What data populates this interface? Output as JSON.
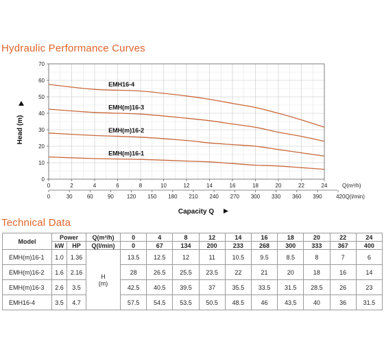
{
  "chart_title": "Hydraulic Performance Curves",
  "table_title": "Technical Data",
  "chart_data": {
    "type": "line",
    "ylabel": "Head (m)",
    "xlabel": "Capacity Q",
    "x_unit": "Q(m³/h)",
    "x2_unit": "420Q(l/min)",
    "ylim": [
      0,
      70
    ],
    "xlim": [
      0,
      24
    ],
    "y_ticks": [
      "0",
      "10",
      "20",
      "30",
      "40",
      "50",
      "60",
      "70"
    ],
    "x_ticks": [
      "0",
      "2",
      "4",
      "6",
      "8",
      "10",
      "12",
      "14",
      "16",
      "18",
      "20",
      "22",
      "24"
    ],
    "x2_ticks": [
      "0",
      "30",
      "60",
      "90",
      "120",
      "150",
      "180",
      "210",
      "240",
      "270",
      "300",
      "330",
      "360",
      "390"
    ],
    "grid": true,
    "line_color": "#c9683a",
    "series": [
      {
        "name": "EMH16-4",
        "x": [
          0,
          4,
          8,
          12,
          14,
          16,
          18,
          20,
          22,
          24
        ],
        "values": [
          57.5,
          54.5,
          53.5,
          50.5,
          48.5,
          46,
          43.5,
          40,
          36,
          31.5
        ]
      },
      {
        "name": "EMH(m)16-3",
        "x": [
          0,
          4,
          8,
          12,
          14,
          16,
          18,
          20,
          22,
          24
        ],
        "values": [
          42.5,
          40.5,
          39.5,
          37,
          35.5,
          33.5,
          31.5,
          28.5,
          26,
          23
        ]
      },
      {
        "name": "EMH(m)16-2",
        "x": [
          0,
          4,
          8,
          12,
          14,
          16,
          18,
          20,
          22,
          24
        ],
        "values": [
          28,
          26.5,
          25.5,
          23.5,
          22,
          21,
          20,
          18,
          16,
          14
        ]
      },
      {
        "name": "EMH(m)16-1",
        "x": [
          0,
          4,
          8,
          12,
          14,
          16,
          18,
          20,
          22,
          24
        ],
        "values": [
          13.5,
          12.5,
          12,
          11,
          10.5,
          9.5,
          8.5,
          8,
          7,
          6
        ]
      }
    ]
  },
  "table": {
    "h_model": "Model",
    "h_power": "Power",
    "h_kw": "kW",
    "h_hp": "HP",
    "h_q_m3h": "Q(m³/h)",
    "h_q_lmin": "Q(l/min)",
    "h_label": "H",
    "h_unit": "(m)",
    "q_m3h": [
      "0",
      "4",
      "8",
      "12",
      "14",
      "16",
      "18",
      "20",
      "22",
      "24"
    ],
    "q_lmin": [
      "0",
      "67",
      "134",
      "200",
      "233",
      "268",
      "300",
      "333",
      "367",
      "400"
    ],
    "rows": [
      {
        "model": "EMH(m)16-1",
        "kw": "1.0",
        "hp": "1.36",
        "h": [
          "13.5",
          "12.5",
          "12",
          "11",
          "10.5",
          "9.5",
          "8.5",
          "8",
          "7",
          "6"
        ]
      },
      {
        "model": "EMH(m)16-2",
        "kw": "1.6",
        "hp": "2.16",
        "h": [
          "28",
          "26.5",
          "25.5",
          "23.5",
          "22",
          "21",
          "20",
          "18",
          "16",
          "14"
        ]
      },
      {
        "model": "EMH(m)16-3",
        "kw": "2.6",
        "hp": "3.5",
        "h": [
          "42.5",
          "40.5",
          "39.5",
          "37",
          "35.5",
          "33.5",
          "31.5",
          "28.5",
          "26",
          "23"
        ]
      },
      {
        "model": "EMH16-4",
        "kw": "3.5",
        "hp": "4.7",
        "h": [
          "57.5",
          "54.5",
          "53.5",
          "50.5",
          "48.5",
          "46",
          "43.5",
          "40",
          "36",
          "31.5"
        ]
      }
    ]
  }
}
